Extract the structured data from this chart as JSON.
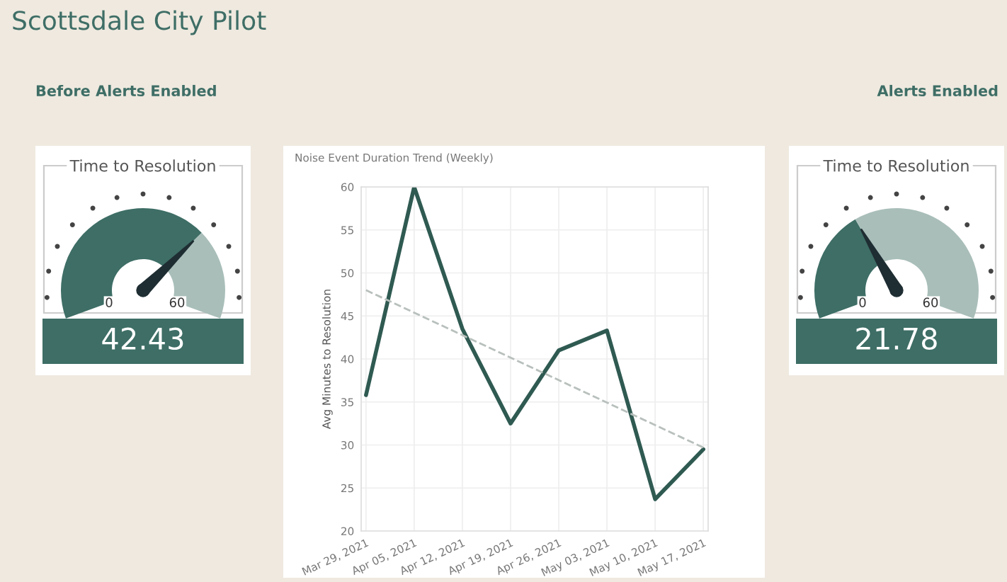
{
  "chart_data": [
    {
      "type": "other",
      "title": "Scottsdale City Pilot"
    },
    {
      "type": "donut",
      "subtitle": "Before Alerts Enabled",
      "title": "Time to Resolution",
      "categories": [
        null,
        null
      ],
      "values": [
        70.7,
        29.3
      ],
      "colors": [
        "#3e6e66",
        "#a9beb9"
      ],
      "annotations": [
        "42.43",
        "0",
        "60"
      ]
    },
    {
      "type": "line",
      "title": "Noise Event Duration Trend (Weekly)",
      "ylabel": "Avg Minutes to Resolution",
      "categories": [
        "Mar 29, 2021",
        "Apr 05, 2021",
        "Apr 12, 2021",
        "Apr 19, 2021",
        "Apr 26, 2021",
        "May 03, 2021",
        "May 10, 2021",
        "May 17, 2021"
      ],
      "series": [
        {
          "color": "#2f5a52",
          "values": [
            35.8,
            60,
            43.5,
            32.5,
            41,
            43.3,
            23.7,
            29.5
          ]
        },
        {
          "color": "#b8c0bc",
          "line_style": "dashed",
          "x": [
            "Mar 29, 2021",
            "May 17, 2021"
          ],
          "values": [
            48,
            29.7
          ]
        }
      ],
      "ylim": [
        20,
        60
      ],
      "yticks": [
        20,
        25,
        30,
        35,
        40,
        45,
        50,
        55,
        60
      ],
      "grid": true
    },
    {
      "type": "donut",
      "subtitle": "Alerts Enabled",
      "title": "Time to Resolution",
      "categories": [
        null,
        null
      ],
      "values": [
        36.3,
        63.7
      ],
      "colors": [
        "#3e6e66",
        "#a9beb9"
      ],
      "annotations": [
        "21.78",
        "0",
        "60"
      ]
    }
  ]
}
